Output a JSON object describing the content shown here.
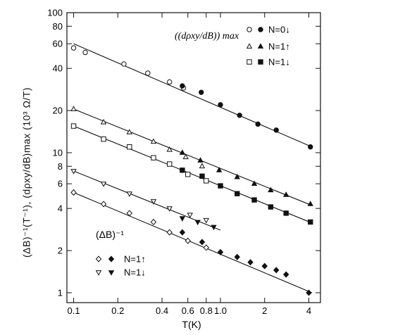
{
  "chart_data": {
    "type": "scatter",
    "xlabel": "T(K)",
    "ylabel": "(ΔB)⁻¹(T⁻¹), (dρxy/dB)max (10³ Ω/T)",
    "x_scale": "log",
    "y_scale": "log",
    "xlim": [
      0.09,
      4.8
    ],
    "ylim": [
      0.85,
      100
    ],
    "x_ticks": [
      0.1,
      0.2,
      0.4,
      0.6,
      0.8,
      1.0,
      2,
      4
    ],
    "x_tick_labels": [
      "0.1",
      "0.2",
      "0.4",
      "0.6",
      "0.8",
      "1.0",
      "2",
      "4"
    ],
    "y_ticks": [
      1,
      2,
      4,
      6,
      8,
      10,
      20,
      40,
      60,
      80,
      100
    ],
    "y_tick_labels": [
      "1",
      "2",
      "4",
      "6",
      "8",
      "10",
      "20",
      "40",
      "60",
      "80",
      "100"
    ],
    "legend_top": {
      "header": "(dρxy/dB)max",
      "entries": [
        "N=0↓",
        "N=1↑",
        "N=1↓"
      ]
    },
    "legend_bottom": {
      "header": "(ΔB)⁻¹",
      "entries": [
        "N=1↑",
        "N=1↓"
      ]
    },
    "series": [
      {
        "marker": "circle",
        "line": {
          "x": [
            0.1,
            4.2
          ],
          "y": [
            60,
            11
          ]
        },
        "open": {
          "x": [
            0.1,
            0.12,
            0.22,
            0.32,
            0.45,
            0.56
          ],
          "y": [
            56,
            52,
            43,
            37,
            32,
            29
          ]
        },
        "filled": {
          "x": [
            0.55,
            0.74,
            1.0,
            1.35,
            1.8,
            2.4,
            4.1
          ],
          "y": [
            30,
            27,
            22,
            18.5,
            16,
            14.5,
            11
          ]
        }
      },
      {
        "marker": "triangle-up",
        "line": {
          "x": [
            0.1,
            4.2
          ],
          "y": [
            20.5,
            4.2
          ]
        },
        "open": {
          "x": [
            0.1,
            0.16,
            0.24,
            0.35,
            0.45,
            0.58,
            0.75
          ],
          "y": [
            20.5,
            16.5,
            14,
            12,
            10.5,
            9.3,
            8
          ]
        },
        "filled": {
          "x": [
            0.55,
            0.73,
            0.98,
            1.3,
            1.7,
            2.2,
            2.8,
            4.1
          ],
          "y": [
            10,
            8.8,
            7.5,
            6.7,
            6,
            5.4,
            5,
            4.3
          ]
        }
      },
      {
        "marker": "square",
        "line": {
          "x": [
            0.1,
            4.2
          ],
          "y": [
            15.5,
            3.15
          ]
        },
        "open": {
          "x": [
            0.1,
            0.16,
            0.24,
            0.35,
            0.45,
            0.6,
            0.8
          ],
          "y": [
            15.5,
            12.5,
            11,
            9.2,
            8.3,
            7,
            6.3
          ]
        },
        "filled": {
          "x": [
            0.55,
            0.75,
            1.0,
            1.3,
            1.7,
            2.2,
            2.8,
            4.1
          ],
          "y": [
            7.5,
            6.8,
            5.8,
            5.1,
            4.6,
            4.1,
            3.7,
            3.2
          ]
        }
      },
      {
        "marker": "triangle-down",
        "line": {
          "x": [
            0.1,
            1.0
          ],
          "y": [
            7.4,
            2.8
          ]
        },
        "open": {
          "x": [
            0.1,
            0.16,
            0.24,
            0.35,
            0.45,
            0.62,
            0.8
          ],
          "y": [
            7.4,
            6,
            5.1,
            4.5,
            4,
            3.6,
            3.3
          ]
        },
        "filled": {
          "x": [
            0.55,
            0.7,
            0.9
          ],
          "y": [
            3.4,
            3.2,
            2.95
          ]
        }
      },
      {
        "marker": "diamond",
        "line": {
          "x": [
            0.1,
            4.2
          ],
          "y": [
            5.2,
            1.0
          ]
        },
        "open": {
          "x": [
            0.1,
            0.16,
            0.24,
            0.35,
            0.45,
            0.6,
            0.8
          ],
          "y": [
            5.2,
            4.3,
            3.7,
            3.2,
            2.7,
            2.35,
            2.1
          ]
        },
        "filled": {
          "x": [
            0.55,
            0.75,
            1.0,
            1.3,
            1.6,
            2.0,
            2.4,
            2.8,
            4.0
          ],
          "y": [
            2.7,
            2.3,
            1.95,
            1.8,
            1.65,
            1.55,
            1.45,
            1.35,
            1.0
          ]
        }
      }
    ]
  }
}
